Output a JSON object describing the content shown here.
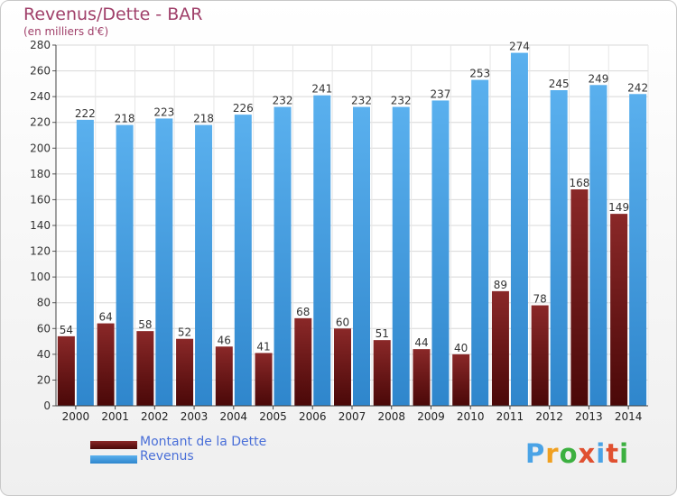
{
  "chart_data": {
    "type": "bar",
    "title": "Revenus/Dette - BAR",
    "subtitle": "(en milliers d'€)",
    "categories": [
      "2000",
      "2001",
      "2002",
      "2003",
      "2004",
      "2005",
      "2006",
      "2007",
      "2008",
      "2009",
      "2010",
      "2011",
      "2012",
      "2013",
      "2014"
    ],
    "series": [
      {
        "name": "Montant de la Dette",
        "values": [
          54,
          64,
          58,
          52,
          46,
          41,
          68,
          60,
          51,
          44,
          40,
          89,
          78,
          168,
          149
        ],
        "color": "#7a1a1a"
      },
      {
        "name": "Revenus",
        "values": [
          222,
          218,
          223,
          218,
          226,
          232,
          241,
          232,
          232,
          237,
          253,
          274,
          245,
          249,
          242
        ],
        "color": "#4aa3e6"
      }
    ],
    "ylim": [
      0,
      280
    ],
    "yticks": [
      0,
      20,
      40,
      60,
      80,
      100,
      120,
      140,
      160,
      180,
      200,
      220,
      240,
      260,
      280
    ],
    "grid": true,
    "legend_placement": "bottom-left"
  },
  "legend": {
    "items": [
      {
        "label": "Montant de la Dette"
      },
      {
        "label": "Revenus"
      }
    ]
  },
  "logo": {
    "text": "Proxiti",
    "colors": [
      "#4aa3e6",
      "#f0a020",
      "#3cb040",
      "#e05030",
      "#4aa3e6",
      "#e05030",
      "#3cb040"
    ]
  }
}
